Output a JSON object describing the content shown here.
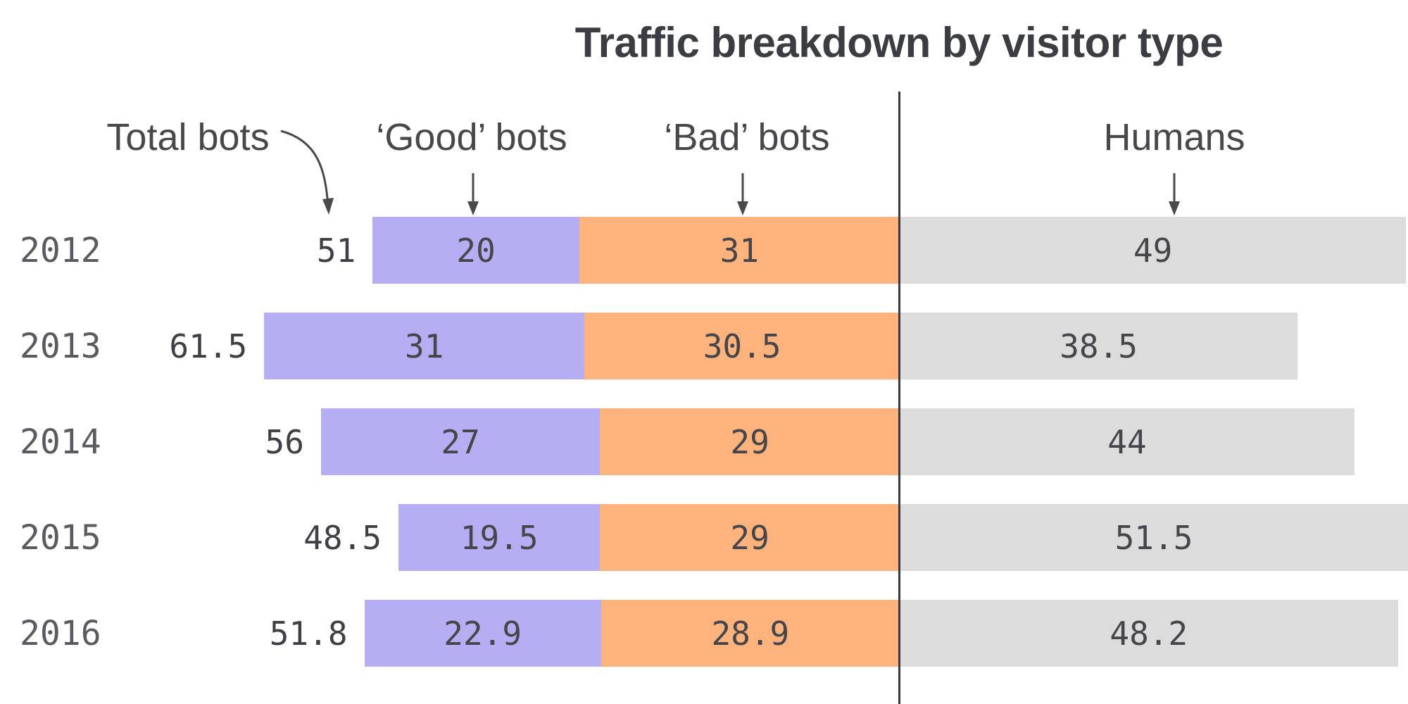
{
  "chart_data": {
    "type": "bar",
    "subtype": "horizontal-stacked-diverging",
    "title": "Traffic breakdown by visitor type",
    "column_labels": {
      "total": "Total bots",
      "good": "‘Good’ bots",
      "bad": "‘Bad’ bots",
      "humans": "Humans"
    },
    "categories": [
      "2012",
      "2013",
      "2014",
      "2015",
      "2016"
    ],
    "series": [
      {
        "name": "Total bots",
        "values": [
          51,
          61.5,
          56,
          48.5,
          51.8
        ]
      },
      {
        "name": "‘Good’ bots",
        "values": [
          20,
          31,
          27,
          19.5,
          22.9
        ]
      },
      {
        "name": "‘Bad’ bots",
        "values": [
          31,
          30.5,
          29,
          29,
          28.9
        ]
      },
      {
        "name": "Humans",
        "values": [
          49,
          38.5,
          44,
          51.5,
          48.2
        ]
      }
    ],
    "colors": {
      "good_bots": "#b5aef3",
      "bad_bots": "#fdb37b",
      "humans": "#dcdcdc",
      "divider_line": "#3a3a3e",
      "title_text": "#3c3c43",
      "value_text": "#45454b",
      "year_text": "#5a5a60"
    },
    "layout_hints": {
      "legend_position": "top-inline-labels-with-arrows",
      "grid": false,
      "bots_right_aligned_to_divider": true,
      "humans_left_aligned_to_divider": true
    }
  }
}
